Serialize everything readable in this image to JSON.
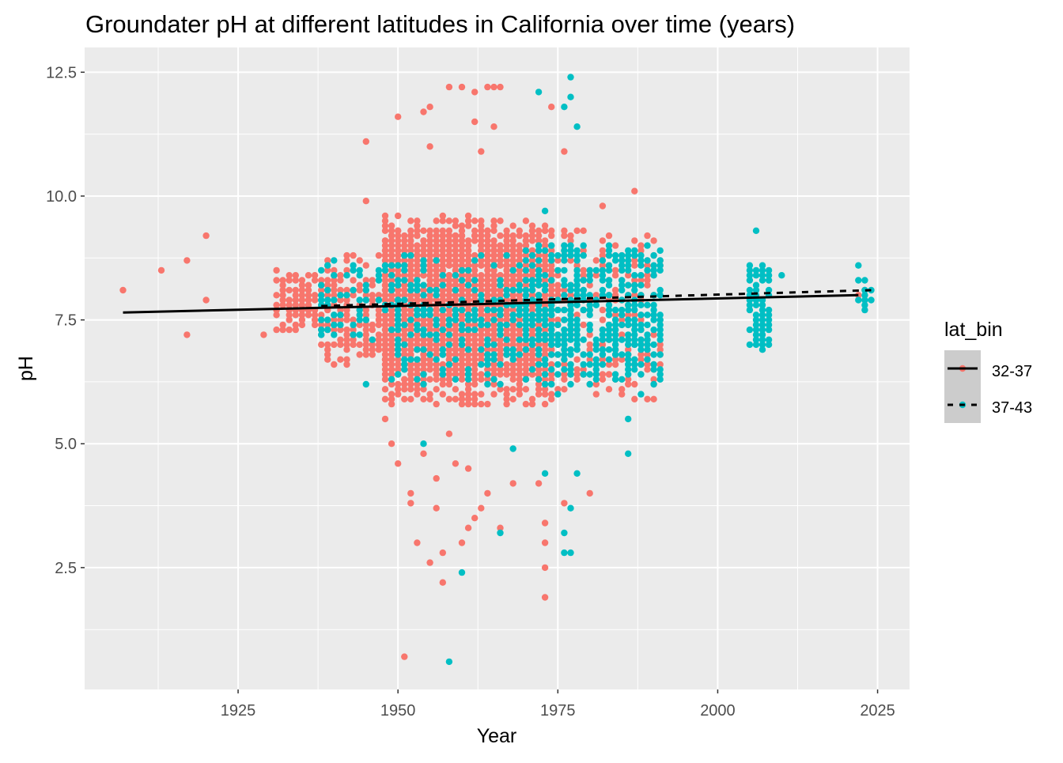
{
  "chart_data": {
    "type": "scatter",
    "title": "Groundater pH at different latitudes in California over time (years)",
    "xlabel": "Year",
    "ylabel": "pH",
    "xlim": [
      1901,
      2030
    ],
    "ylim": [
      0.04,
      13.0
    ],
    "x_ticks": [
      1925,
      1950,
      1975,
      2000,
      2025
    ],
    "x_tick_labels": [
      "1925",
      "1950",
      "1975",
      "2000",
      "2025"
    ],
    "y_ticks": [
      2.5,
      5.0,
      7.5,
      10.0,
      12.5
    ],
    "y_tick_labels": [
      "2.5",
      "5.0",
      "7.5",
      "10.0",
      "12.5"
    ],
    "grid": true,
    "legend": {
      "title": "lat_bin",
      "placement": "right"
    },
    "colors": {
      "panel": "#EBEBEB",
      "grid": "#FFFFFF"
    },
    "series": [
      {
        "name": "32-37",
        "color": "#F8766D",
        "line_style": "solid",
        "trend": [
          [
            1907,
            7.65
          ],
          [
            2022,
            8.0
          ]
        ],
        "dense_regions": [
          {
            "years": [
              1931,
              1937
            ],
            "ph": [
              7.2,
              8.5
            ],
            "density": 0.75
          },
          {
            "years": [
              1938,
              1947
            ],
            "ph": [
              6.6,
              8.8
            ],
            "density": 0.7
          },
          {
            "years": [
              1948,
              1974
            ],
            "ph": [
              5.8,
              9.6
            ],
            "density": 0.8
          },
          {
            "years": [
              1948,
              1974
            ],
            "ph": [
              6.3,
              9.3
            ],
            "density": 0.95
          },
          {
            "years": [
              1975,
              1991
            ],
            "ph": [
              5.9,
              9.3
            ],
            "density": 0.5
          },
          {
            "years": [
              2022,
              2024
            ],
            "ph": [
              7.9,
              8.1
            ],
            "density": 0.6
          }
        ],
        "points": [
          [
            1907,
            8.1
          ],
          [
            1913,
            8.5
          ],
          [
            1917,
            8.7
          ],
          [
            1917,
            7.2
          ],
          [
            1920,
            9.2
          ],
          [
            1920,
            7.9
          ],
          [
            1929,
            7.2
          ],
          [
            1950,
            4.6
          ],
          [
            1951,
            0.7
          ],
          [
            1952,
            4.0
          ],
          [
            1952,
            3.8
          ],
          [
            1953,
            3.0
          ],
          [
            1955,
            2.6
          ],
          [
            1956,
            3.7
          ],
          [
            1957,
            2.2
          ],
          [
            1957,
            2.8
          ],
          [
            1960,
            3.0
          ],
          [
            1958,
            12.2
          ],
          [
            1960,
            12.2
          ],
          [
            1962,
            12.1
          ],
          [
            1964,
            12.2
          ],
          [
            1965,
            12.2
          ],
          [
            1966,
            12.2
          ],
          [
            1955,
            11.8
          ],
          [
            1954,
            11.7
          ],
          [
            1950,
            11.6
          ],
          [
            1945,
            11.1
          ],
          [
            1955,
            11.0
          ],
          [
            1973,
            1.9
          ],
          [
            1973,
            2.5
          ],
          [
            1973,
            3.0
          ],
          [
            1973,
            3.4
          ],
          [
            1980,
            4.0
          ],
          [
            1976,
            3.8
          ],
          [
            1976,
            10.9
          ],
          [
            1974,
            11.8
          ],
          [
            1966,
            3.3
          ],
          [
            1961,
            3.3
          ],
          [
            1962,
            3.5
          ],
          [
            1964,
            4.0
          ],
          [
            1968,
            4.2
          ],
          [
            1972,
            4.2
          ],
          [
            1954,
            4.8
          ],
          [
            1956,
            4.3
          ],
          [
            1948,
            5.5
          ],
          [
            1949,
            5.0
          ],
          [
            1945,
            9.9
          ],
          [
            1987,
            10.1
          ],
          [
            1982,
            9.8
          ],
          [
            1962,
            11.5
          ],
          [
            1963,
            10.9
          ],
          [
            1965,
            11.4
          ],
          [
            1961,
            4.5
          ],
          [
            1963,
            3.7
          ],
          [
            1959,
            4.6
          ],
          [
            1958,
            5.2
          ]
        ]
      },
      {
        "name": "37-43",
        "color": "#00BFC4",
        "line_style": "dashed",
        "trend": [
          [
            1938,
            7.78
          ],
          [
            2024,
            8.1
          ]
        ],
        "dense_regions": [
          {
            "years": [
              1938,
              1950
            ],
            "ph": [
              7.0,
              8.7
            ],
            "density": 0.3
          },
          {
            "years": [
              1950,
              1970
            ],
            "ph": [
              6.2,
              8.8
            ],
            "density": 0.35
          },
          {
            "years": [
              1970,
              1991
            ],
            "ph": [
              6.2,
              9.0
            ],
            "density": 0.6
          },
          {
            "years": [
              2005,
              2008
            ],
            "ph": [
              6.9,
              8.7
            ],
            "density": 0.75
          },
          {
            "years": [
              2022,
              2024
            ],
            "ph": [
              7.7,
              8.3
            ],
            "density": 0.7
          }
        ],
        "points": [
          [
            1958,
            0.6
          ],
          [
            1960,
            2.4
          ],
          [
            1966,
            3.2
          ],
          [
            1968,
            4.9
          ],
          [
            1973,
            4.4
          ],
          [
            1976,
            3.2
          ],
          [
            1977,
            3.7
          ],
          [
            1976,
            2.8
          ],
          [
            1977,
            2.8
          ],
          [
            1978,
            4.4
          ],
          [
            1986,
            4.8
          ],
          [
            1986,
            5.5
          ],
          [
            1977,
            12.4
          ],
          [
            1977,
            12.0
          ],
          [
            1976,
            11.8
          ],
          [
            1978,
            11.4
          ],
          [
            1972,
            12.1
          ],
          [
            1945,
            6.2
          ],
          [
            1954,
            5.0
          ],
          [
            2010,
            8.4
          ],
          [
            2022,
            8.6
          ],
          [
            2006,
            9.3
          ],
          [
            1973,
            9.7
          ],
          [
            1975,
            6.0
          ],
          [
            1988,
            6.0
          ],
          [
            1949,
            6.3
          ]
        ]
      }
    ]
  }
}
